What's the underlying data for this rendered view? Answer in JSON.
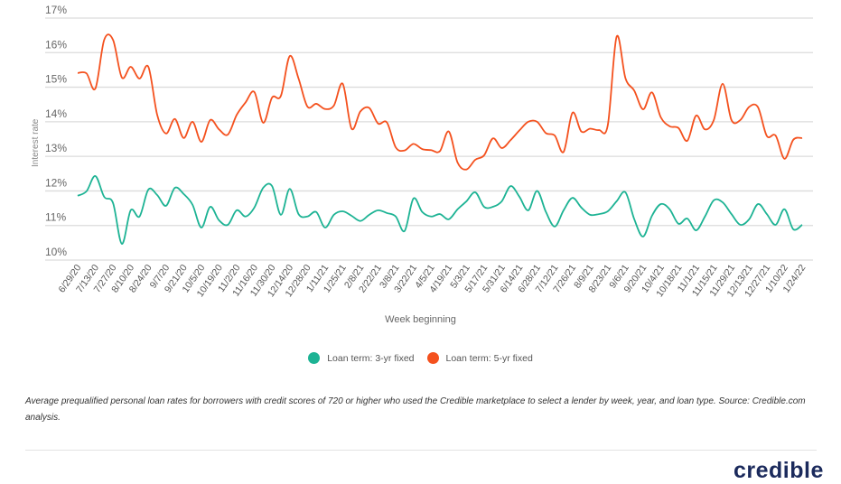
{
  "chart_data": {
    "type": "line",
    "title": "",
    "xlabel": "Week beginning",
    "ylabel": "Interest rate",
    "ylim": [
      10,
      17
    ],
    "yticks": [
      "10%",
      "11%",
      "12%",
      "13%",
      "14%",
      "15%",
      "16%",
      "17%"
    ],
    "grid": true,
    "legend_position": "bottom",
    "x_tick_labels": [
      "6/29/20",
      "7/13/20",
      "7/27/20",
      "8/10/20",
      "8/24/20",
      "9/7/20",
      "9/21/20",
      "10/5/20",
      "10/19/20",
      "11/2/20",
      "11/16/20",
      "11/30/20",
      "12/14/20",
      "12/28/20",
      "1/11/21",
      "1/25/21",
      "2/8/21",
      "2/22/21",
      "3/8/21",
      "3/22/21",
      "4/5/21",
      "4/19/21",
      "5/3/21",
      "5/17/21",
      "5/31/21",
      "6/14/21",
      "6/28/21",
      "7/12/21",
      "7/26/21",
      "8/9/21",
      "8/23/21",
      "9/6/21",
      "9/20/21",
      "10/4/21",
      "10/18/21",
      "11/1/21",
      "11/15/21",
      "11/29/21",
      "12/13/21",
      "12/27/21",
      "1/10/22",
      "1/24/22"
    ],
    "series": [
      {
        "name": "Loan term: 3-yr fixed",
        "color": "#1db394",
        "values": [
          11.86,
          11.99,
          12.43,
          11.83,
          11.65,
          10.47,
          11.44,
          11.26,
          12.04,
          11.88,
          11.57,
          12.09,
          11.91,
          11.6,
          10.94,
          11.54,
          11.15,
          11.02,
          11.44,
          11.26,
          11.52,
          12.09,
          12.14,
          11.31,
          12.06,
          11.33,
          11.26,
          11.39,
          10.94,
          11.31,
          11.41,
          11.28,
          11.13,
          11.31,
          11.44,
          11.36,
          11.26,
          10.84,
          11.78,
          11.39,
          11.26,
          11.33,
          11.18,
          11.47,
          11.7,
          11.96,
          11.54,
          11.54,
          11.7,
          12.14,
          11.83,
          11.44,
          12.0,
          11.39,
          10.97,
          11.44,
          11.8,
          11.52,
          11.31,
          11.33,
          11.41,
          11.7,
          11.96,
          11.18,
          10.68,
          11.28,
          11.62,
          11.47,
          11.05,
          11.2,
          10.86,
          11.26,
          11.73,
          11.67,
          11.33,
          11.02,
          11.18,
          11.62,
          11.33,
          11.02,
          11.47,
          10.89,
          11.02
        ]
      },
      {
        "name": "Loan term: 5-yr fixed",
        "color": "#f4511e",
        "values": [
          15.41,
          15.4,
          14.96,
          16.37,
          16.37,
          15.28,
          15.59,
          15.25,
          15.59,
          14.2,
          13.66,
          14.08,
          13.53,
          14.0,
          13.42,
          14.05,
          13.78,
          13.63,
          14.2,
          14.56,
          14.86,
          13.97,
          14.7,
          14.75,
          15.9,
          15.25,
          14.44,
          14.52,
          14.37,
          14.47,
          15.1,
          13.8,
          14.3,
          14.4,
          13.95,
          13.98,
          13.26,
          13.17,
          13.36,
          13.21,
          13.18,
          13.15,
          13.72,
          12.82,
          12.62,
          12.9,
          13.03,
          13.52,
          13.24,
          13.47,
          13.75,
          14.0,
          14.0,
          13.67,
          13.6,
          13.13,
          14.26,
          13.72,
          13.8,
          13.76,
          13.9,
          16.46,
          15.26,
          14.9,
          14.36,
          14.85,
          14.13,
          13.87,
          13.82,
          13.45,
          14.18,
          13.78,
          14.05,
          15.1,
          14.05,
          14.05,
          14.43,
          14.42,
          13.59,
          13.6,
          12.93,
          13.48,
          13.53
        ]
      }
    ]
  },
  "caption": "Average prequalified personal loan rates for borrowers with credit scores of 720 or higher who used the Credible marketplace to select a lender by week, year, and loan type. Source: Credible.com analysis.",
  "logo": "credible"
}
